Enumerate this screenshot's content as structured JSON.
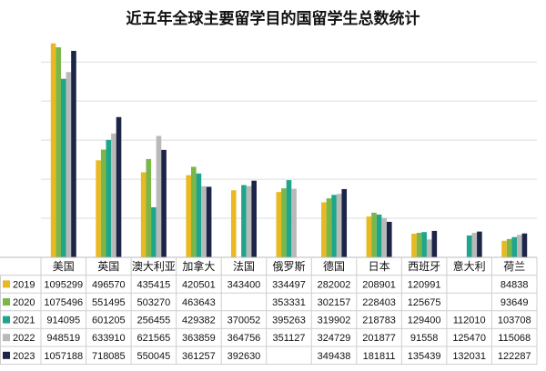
{
  "chart_data": {
    "type": "bar",
    "title": "近五年全球主要留学目的国留学生总数统计",
    "categories": [
      "美国",
      "英国",
      "澳大利亚",
      "加拿大",
      "法国",
      "俄罗斯",
      "德国",
      "日本",
      "西班牙",
      "意大利",
      "荷兰"
    ],
    "ylim": [
      0,
      1150000
    ],
    "grid": true,
    "legend": "table-left",
    "series": [
      {
        "name": "2019",
        "color": "#e8b923",
        "values": [
          1095299,
          496570,
          435415,
          420501,
          343400,
          334497,
          282002,
          208901,
          120991,
          null,
          84838
        ],
        "labels": [
          "1095299",
          "496570",
          "435415",
          "420501",
          "343400",
          "334497",
          "282002",
          "208901",
          "120991",
          "",
          "84838"
        ]
      },
      {
        "name": "2020",
        "color": "#7ab648",
        "values": [
          1075496,
          551495,
          503270,
          463643,
          null,
          353331,
          302157,
          228403,
          125675,
          null,
          93649
        ],
        "labels": [
          "1075496",
          "551495",
          "503270",
          "463643",
          "",
          "353331",
          "302157",
          "228403",
          "125675",
          "",
          "93649"
        ]
      },
      {
        "name": "2021",
        "color": "#1fa58c",
        "values": [
          914095,
          601205,
          256455,
          429382,
          370052,
          395263,
          319902,
          218783,
          129400,
          112010,
          103708
        ],
        "labels": [
          "914095",
          "601205",
          "256455",
          "429382",
          "370052",
          "395263",
          "319902",
          "218783",
          "129400",
          "112010",
          "103708"
        ]
      },
      {
        "name": "2022",
        "color": "#b9b9b9",
        "values": [
          948519,
          633910,
          621565,
          363859,
          364756,
          351127,
          324729,
          201877,
          91558,
          125470,
          115068
        ],
        "labels": [
          "948519",
          "633910",
          "621565",
          "363859",
          "364756",
          "351127",
          "324729",
          "201877",
          "91558",
          "125470",
          "115068"
        ]
      },
      {
        "name": "2023",
        "color": "#1c2448",
        "values": [
          1057188,
          718085,
          550045,
          361257,
          392630,
          null,
          349438,
          181811,
          135439,
          132031,
          122287
        ],
        "labels": [
          "1057188",
          "718085",
          "550045",
          "361257",
          "392630",
          "",
          "349438",
          "181811",
          "135439",
          "132031",
          "122287"
        ]
      }
    ]
  }
}
